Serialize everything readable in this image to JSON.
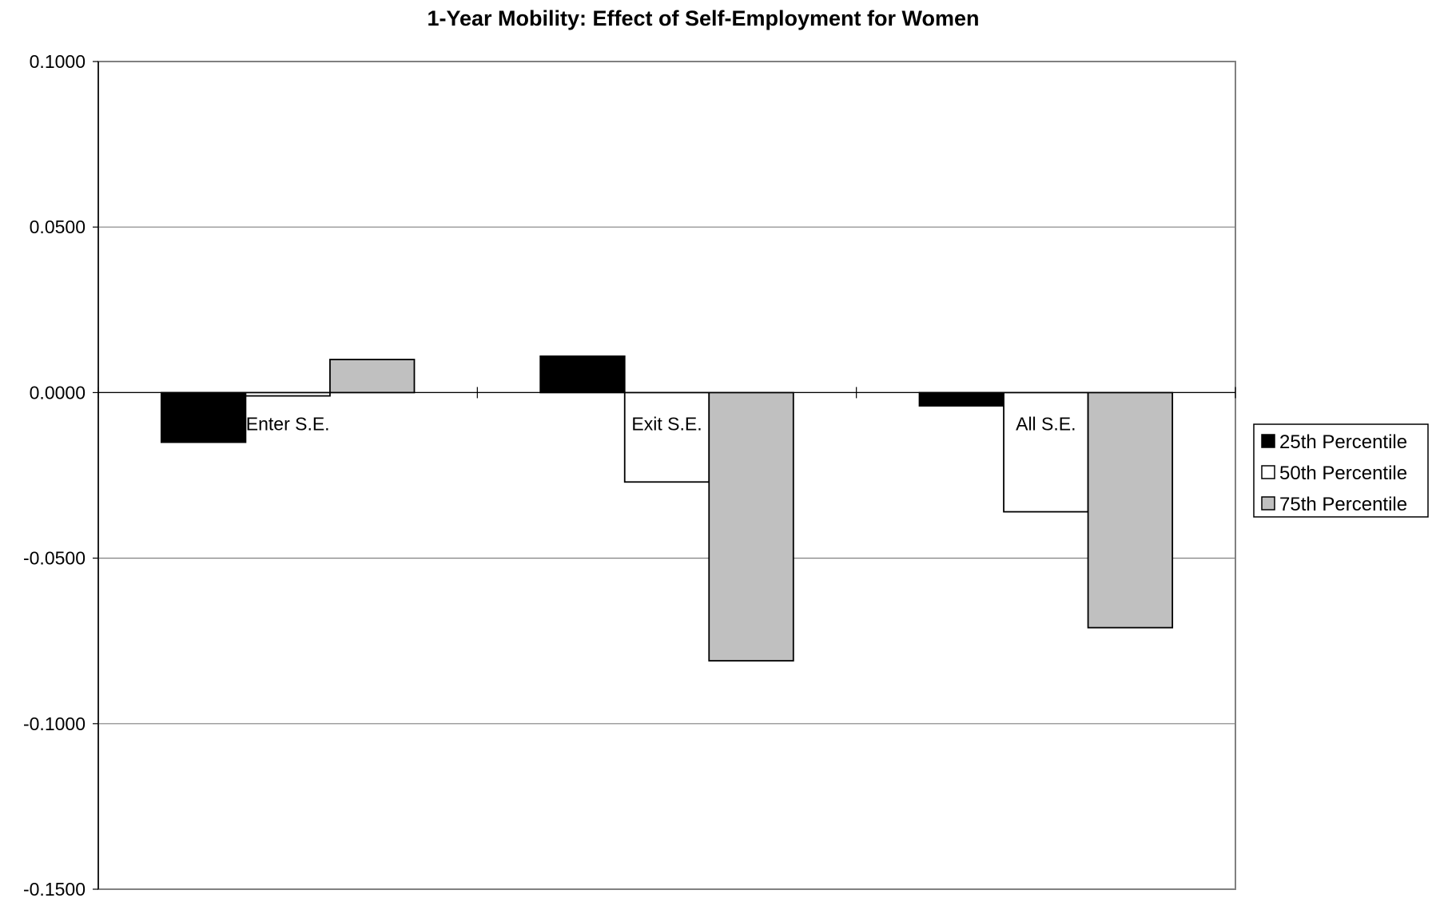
{
  "chart_data": {
    "type": "bar",
    "title": "1-Year Mobility: Effect of Self-Employment for Women",
    "xlabel": "",
    "ylabel": "",
    "categories": [
      "Enter S.E.",
      "Exit S.E.",
      "All S.E."
    ],
    "series": [
      {
        "name": "25th Percentile",
        "color": "#000000",
        "values": [
          -0.015,
          0.011,
          -0.004
        ]
      },
      {
        "name": "50th Percentile",
        "color": "#ffffff",
        "values": [
          -0.001,
          -0.027,
          -0.036
        ]
      },
      {
        "name": "75th Percentile",
        "color": "#c0c0c0",
        "values": [
          0.01,
          -0.081,
          -0.071
        ]
      }
    ],
    "ylim": [
      -0.15,
      0.1
    ],
    "yticks": [
      "0.1000",
      "0.0500",
      "0.0000",
      "-0.0500",
      "-0.1000",
      "-0.1500"
    ],
    "grid": true,
    "legend_position": "right"
  }
}
